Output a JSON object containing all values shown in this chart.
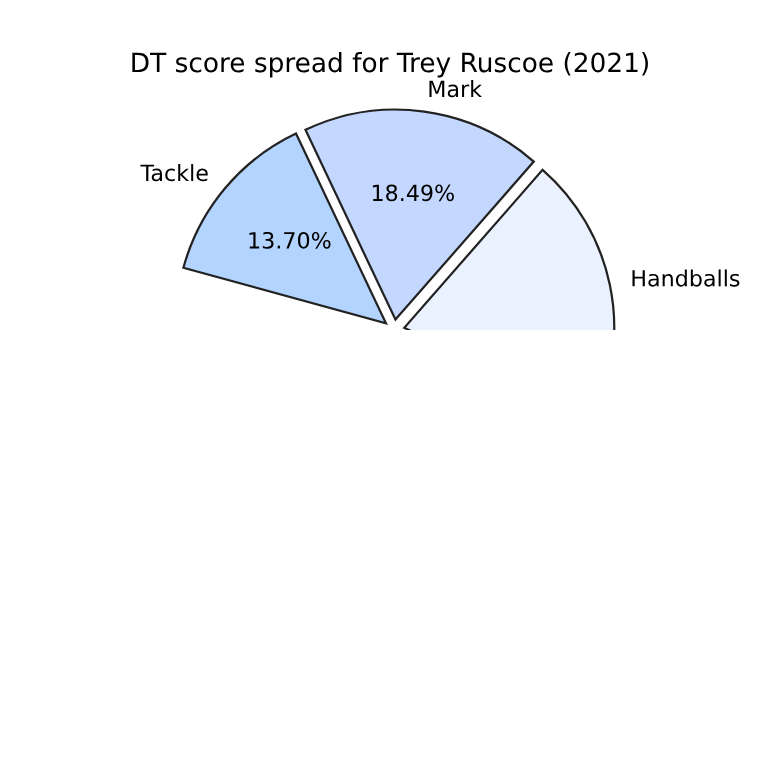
{
  "chart_data": {
    "type": "pie",
    "title": "DT score spread for Trey Ruscoe (2021)",
    "categories": [
      "Handballs",
      "Mark",
      "Tackle"
    ],
    "values": [
      20.5,
      18.49,
      13.7
    ],
    "value_labels": [
      null,
      "18.49%",
      "13.70%"
    ],
    "colors": [
      "#eaf1ff",
      "#c4d8ff",
      "#b3d4ff"
    ]
  }
}
